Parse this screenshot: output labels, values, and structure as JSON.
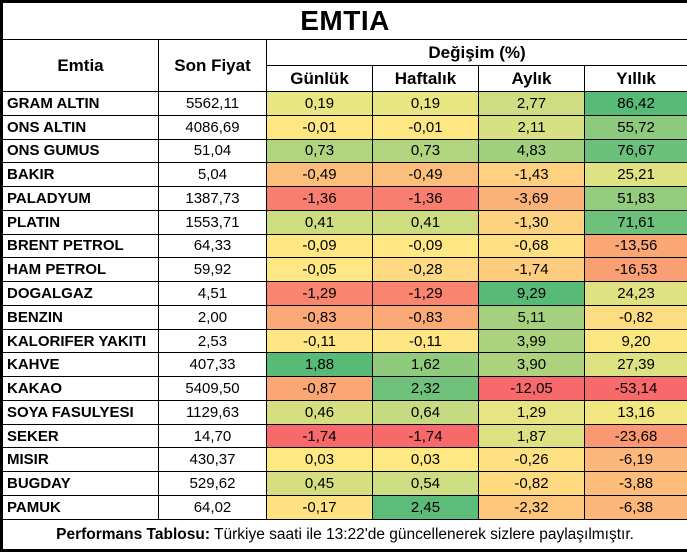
{
  "title": "EMTIA",
  "header": {
    "emtia": "Emtia",
    "son_fiyat": "Son Fiyat",
    "degisim": "Değişim (%)"
  },
  "footer": {
    "label": "Performans Tablosu:",
    "text": " Türkiye saati ile 13:22'de güncellenerek sizlere paylaşılmıştır."
  },
  "colors": {
    "border": "#000000",
    "background": "#FFFFFF",
    "scale_red": "#F8696B",
    "scale_yellow": "#FFEB84",
    "scale_green": "#63BE7B"
  },
  "chart_data": {
    "type": "table",
    "title": "EMTIA",
    "columns": [
      "Emtia",
      "Son Fiyat",
      "Günlük",
      "Haftalık",
      "Aylık",
      "Yıllık"
    ],
    "change_columns": [
      "Günlük",
      "Haftalık",
      "Aylık",
      "Yıllık"
    ],
    "rows": [
      {
        "name": "GRAM ALTIN",
        "price": "5562,11",
        "changes": [
          {
            "v": "0,19",
            "c": "#E8E583"
          },
          {
            "v": "0,19",
            "c": "#E8E583"
          },
          {
            "v": "2,77",
            "c": "#CEDD81"
          },
          {
            "v": "86,42",
            "c": "#57BA77"
          }
        ]
      },
      {
        "name": "ONS ALTIN",
        "price": "4086,69",
        "changes": [
          {
            "v": "-0,01",
            "c": "#FFE884"
          },
          {
            "v": "-0,01",
            "c": "#FFE884"
          },
          {
            "v": "2,11",
            "c": "#D7E082"
          },
          {
            "v": "55,72",
            "c": "#8ECA7D"
          }
        ]
      },
      {
        "name": "ONS GUMUS",
        "price": "51,04",
        "changes": [
          {
            "v": "0,73",
            "c": "#B1D47F"
          },
          {
            "v": "0,73",
            "c": "#B1D47F"
          },
          {
            "v": "4,83",
            "c": "#A0D07E"
          },
          {
            "v": "76,67",
            "c": "#6AC07B"
          }
        ]
      },
      {
        "name": "BAKIR",
        "price": "5,04",
        "changes": [
          {
            "v": "-0,49",
            "c": "#FCBF7B"
          },
          {
            "v": "-0,49",
            "c": "#FCBF7B"
          },
          {
            "v": "-1,43",
            "c": "#FED07F"
          },
          {
            "v": "25,21",
            "c": "#DFE282"
          }
        ]
      },
      {
        "name": "PALADYUM",
        "price": "1387,73",
        "changes": [
          {
            "v": "-1,36",
            "c": "#F87F70"
          },
          {
            "v": "-1,36",
            "c": "#F87F70"
          },
          {
            "v": "-3,69",
            "c": "#FBB279"
          },
          {
            "v": "51,83",
            "c": "#94CC7E"
          }
        ]
      },
      {
        "name": "PLATIN",
        "price": "1553,71",
        "changes": [
          {
            "v": "0,41",
            "c": "#CFDD81"
          },
          {
            "v": "0,41",
            "c": "#CFDD81"
          },
          {
            "v": "-1,30",
            "c": "#FED380"
          },
          {
            "v": "71,61",
            "c": "#6EC17B"
          }
        ]
      },
      {
        "name": "BRENT PETROL",
        "price": "64,33",
        "changes": [
          {
            "v": "-0,09",
            "c": "#FFE884"
          },
          {
            "v": "-0,09",
            "c": "#FFE884"
          },
          {
            "v": "-0,68",
            "c": "#FEDF82"
          },
          {
            "v": "-13,56",
            "c": "#FBA675"
          }
        ]
      },
      {
        "name": "HAM PETROL",
        "price": "59,92",
        "changes": [
          {
            "v": "-0,05",
            "c": "#FFE884"
          },
          {
            "v": "-0,28",
            "c": "#FED981"
          },
          {
            "v": "-1,74",
            "c": "#FECC7E"
          },
          {
            "v": "-16,53",
            "c": "#FA9F74"
          }
        ]
      },
      {
        "name": "DOGALGAZ",
        "price": "4,51",
        "changes": [
          {
            "v": "-1,29",
            "c": "#F9846F"
          },
          {
            "v": "-1,29",
            "c": "#F9846F"
          },
          {
            "v": "9,29",
            "c": "#57BA77"
          },
          {
            "v": "24,23",
            "c": "#DFE282"
          }
        ]
      },
      {
        "name": "BENZIN",
        "price": "2,00",
        "changes": [
          {
            "v": "-0,83",
            "c": "#FBA976"
          },
          {
            "v": "-0,83",
            "c": "#FBA976"
          },
          {
            "v": "5,11",
            "c": "#A4D17E"
          },
          {
            "v": "-0,82",
            "c": "#FEDC81"
          }
        ]
      },
      {
        "name": "KALORIFER YAKITI",
        "price": "2,53",
        "changes": [
          {
            "v": "-0,11",
            "c": "#FFE684"
          },
          {
            "v": "-0,11",
            "c": "#FFE684"
          },
          {
            "v": "3,99",
            "c": "#ABD27F"
          },
          {
            "v": "9,20",
            "c": "#FBE782"
          }
        ]
      },
      {
        "name": "KAHVE",
        "price": "407,33",
        "changes": [
          {
            "v": "1,88",
            "c": "#57BA77"
          },
          {
            "v": "1,62",
            "c": "#8FCA7D"
          },
          {
            "v": "3,90",
            "c": "#ADD37F"
          },
          {
            "v": "27,39",
            "c": "#DCE182"
          }
        ]
      },
      {
        "name": "KAKAO",
        "price": "5409,50",
        "changes": [
          {
            "v": "-0,87",
            "c": "#FBA775"
          },
          {
            "v": "2,32",
            "c": "#6FC17B"
          },
          {
            "v": "-12,05",
            "c": "#F8696B"
          },
          {
            "v": "-53,14",
            "c": "#F8696B"
          }
        ]
      },
      {
        "name": "SOYA FASULYESI",
        "price": "1129,63",
        "changes": [
          {
            "v": "0,46",
            "c": "#D5DF82"
          },
          {
            "v": "0,64",
            "c": "#C6DB81"
          },
          {
            "v": "1,29",
            "c": "#E6E483"
          },
          {
            "v": "13,16",
            "c": "#F2E681"
          }
        ]
      },
      {
        "name": "SEKER",
        "price": "14,70",
        "changes": [
          {
            "v": "-1,74",
            "c": "#F8696B"
          },
          {
            "v": "-1,74",
            "c": "#F8696B"
          },
          {
            "v": "1,87",
            "c": "#DDE182"
          },
          {
            "v": "-23,68",
            "c": "#FA9873"
          }
        ]
      },
      {
        "name": "MISIR",
        "price": "430,37",
        "changes": [
          {
            "v": "0,03",
            "c": "#FCE983"
          },
          {
            "v": "0,03",
            "c": "#FCE983"
          },
          {
            "v": "-0,26",
            "c": "#FEE183"
          },
          {
            "v": "-6,19",
            "c": "#FCB77A"
          }
        ]
      },
      {
        "name": "BUGDAY",
        "price": "529,62",
        "changes": [
          {
            "v": "0,45",
            "c": "#D5DF82"
          },
          {
            "v": "0,54",
            "c": "#CDDD81"
          },
          {
            "v": "-0,82",
            "c": "#FEDA81"
          },
          {
            "v": "-3,88",
            "c": "#FCBD7B"
          }
        ]
      },
      {
        "name": "PAMUK",
        "price": "64,02",
        "changes": [
          {
            "v": "-0,17",
            "c": "#FFE383"
          },
          {
            "v": "2,45",
            "c": "#5CBC79"
          },
          {
            "v": "-2,32",
            "c": "#FDC67D"
          },
          {
            "v": "-6,38",
            "c": "#FCB67A"
          }
        ]
      }
    ]
  }
}
